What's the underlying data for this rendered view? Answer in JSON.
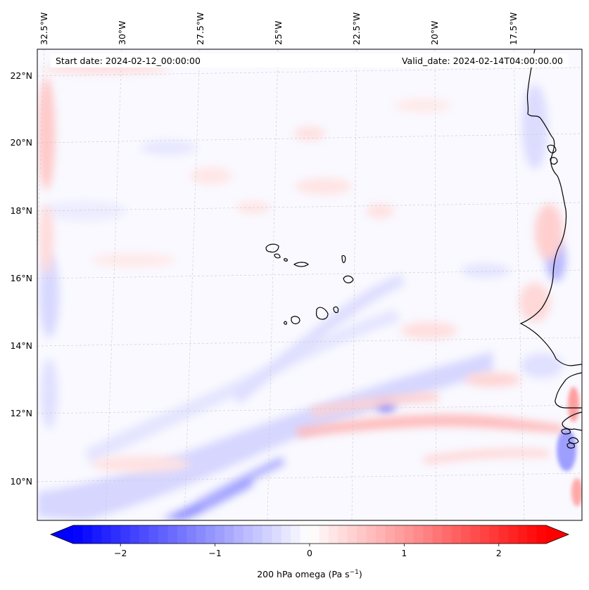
{
  "map": {
    "start_date": "Start date: 2024-02-12_00:00:00",
    "valid_date": "Valid_date: 2024-02-14T04:00:00.00",
    "lon_labels": [
      "32.5°W",
      "30°W",
      "27.5°W",
      "25°W",
      "22.5°W",
      "20°W",
      "17.5°W"
    ],
    "lat_labels": [
      "22°N",
      "20°N",
      "18°N",
      "16°N",
      "14°N",
      "12°N",
      "10°N"
    ],
    "variable": "200 hPa omega"
  },
  "colorbar": {
    "label_main": "200 hPa omega (Pa s",
    "label_exp": "−1",
    "label_close": ")",
    "ticks": [
      "−2",
      "−1",
      "0",
      "1",
      "2"
    ],
    "tick_values": [
      -2,
      -1,
      0,
      1,
      2
    ],
    "vmin": -2.5,
    "vmax": 2.5,
    "cmap": "bwr",
    "low_color": "#0000ff",
    "mid_color": "#ffffff",
    "high_color": "#ff0000"
  }
}
